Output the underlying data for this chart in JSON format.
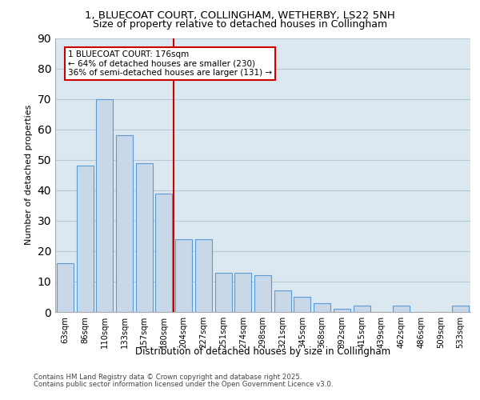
{
  "title_line1": "1, BLUECOAT COURT, COLLINGHAM, WETHERBY, LS22 5NH",
  "title_line2": "Size of property relative to detached houses in Collingham",
  "xlabel": "Distribution of detached houses by size in Collingham",
  "ylabel": "Number of detached properties",
  "categories": [
    "63sqm",
    "86sqm",
    "110sqm",
    "133sqm",
    "157sqm",
    "180sqm",
    "204sqm",
    "227sqm",
    "251sqm",
    "274sqm",
    "298sqm",
    "321sqm",
    "345sqm",
    "368sqm",
    "392sqm",
    "415sqm",
    "439sqm",
    "462sqm",
    "486sqm",
    "509sqm",
    "533sqm"
  ],
  "values": [
    16,
    48,
    70,
    58,
    49,
    39,
    24,
    24,
    13,
    13,
    12,
    7,
    5,
    3,
    1,
    2,
    0,
    2,
    0,
    0,
    2
  ],
  "bar_color": "#c8d8e8",
  "bar_edge_color": "#5b9bd5",
  "bar_edge_width": 0.8,
  "vline_x_index": 5,
  "vline_color": "#cc0000",
  "annotation_text": "1 BLUECOAT COURT: 176sqm\n← 64% of detached houses are smaller (230)\n36% of semi-detached houses are larger (131) →",
  "annotation_box_color": "#cc0000",
  "ylim": [
    0,
    90
  ],
  "yticks": [
    0,
    10,
    20,
    30,
    40,
    50,
    60,
    70,
    80,
    90
  ],
  "grid_color": "#b8c8d8",
  "background_color": "#dce8f0",
  "footer_line1": "Contains HM Land Registry data © Crown copyright and database right 2025.",
  "footer_line2": "Contains public sector information licensed under the Open Government Licence v3.0."
}
